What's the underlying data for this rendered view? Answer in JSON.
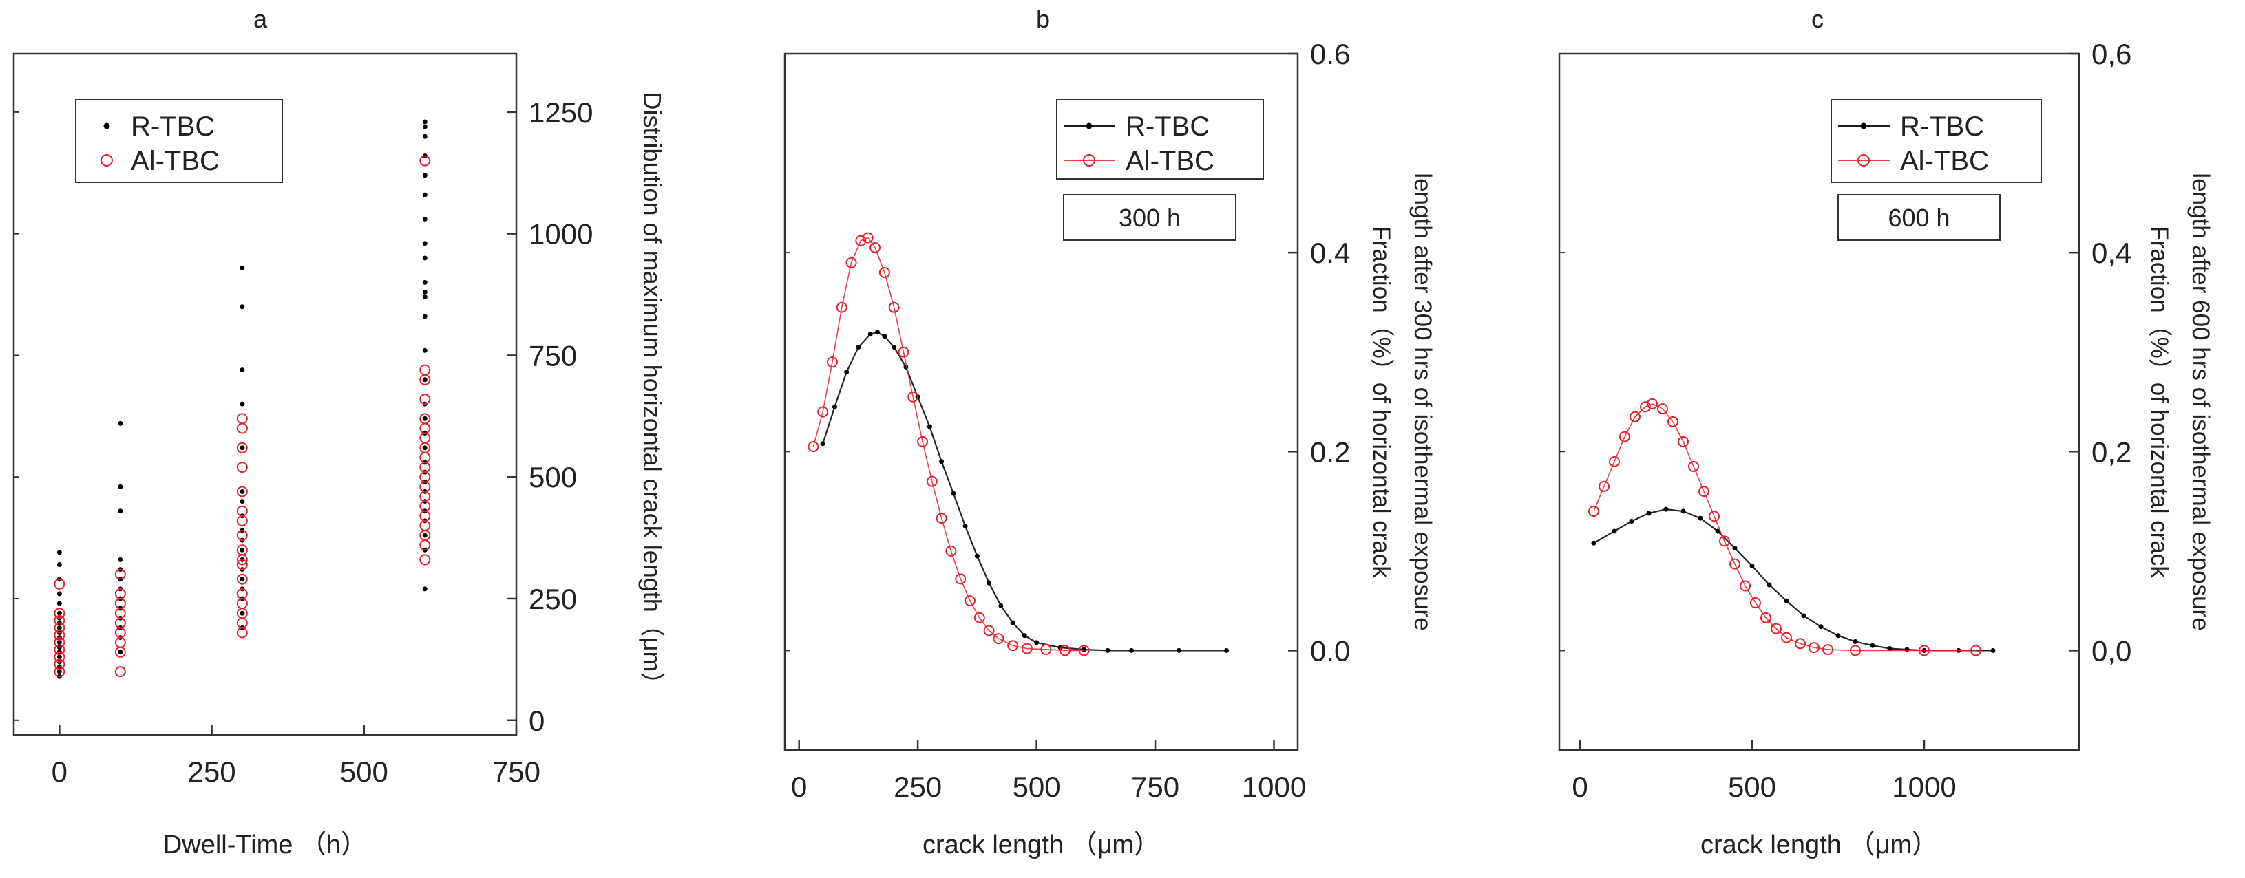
{
  "figure": {
    "panels": [
      "a",
      "b",
      "c"
    ]
  },
  "chart_data": [
    {
      "panel": "a",
      "type": "scatter",
      "title": "a",
      "xlabel": "Dwell-Time （h）",
      "ylabel": "Distribution of maximum horizontal crack length（μm）",
      "xlim": [
        -75,
        750
      ],
      "ylim": [
        -30,
        1370
      ],
      "xticks": [
        0,
        250,
        500,
        750
      ],
      "xtick_labels": [
        "0",
        "250",
        "500",
        "750"
      ],
      "yticks": [
        0,
        250,
        500,
        750,
        1000,
        1250
      ],
      "ytick_labels": [
        "0",
        "250",
        "500",
        "750",
        "1000",
        "1250"
      ],
      "y_axis_side": "right",
      "legend_position": "top-left",
      "series": [
        {
          "name": "R-TBC",
          "color": "#000000",
          "marker": "dot",
          "points": [
            [
              0,
              90
            ],
            [
              0,
              100
            ],
            [
              0,
              110
            ],
            [
              0,
              120
            ],
            [
              0,
              130
            ],
            [
              0,
              140
            ],
            [
              0,
              150
            ],
            [
              0,
              160
            ],
            [
              0,
              170
            ],
            [
              0,
              180
            ],
            [
              0,
              190
            ],
            [
              0,
              200
            ],
            [
              0,
              210
            ],
            [
              0,
              220
            ],
            [
              0,
              240
            ],
            [
              0,
              260
            ],
            [
              0,
              290
            ],
            [
              0,
              320
            ],
            [
              0,
              345
            ],
            [
              100,
              140
            ],
            [
              100,
              170
            ],
            [
              100,
              190
            ],
            [
              100,
              210
            ],
            [
              100,
              230
            ],
            [
              100,
              250
            ],
            [
              100,
              270
            ],
            [
              100,
              290
            ],
            [
              100,
              310
            ],
            [
              100,
              330
            ],
            [
              100,
              430
            ],
            [
              100,
              480
            ],
            [
              100,
              610
            ],
            [
              300,
              190
            ],
            [
              300,
              220
            ],
            [
              300,
              250
            ],
            [
              300,
              270
            ],
            [
              300,
              290
            ],
            [
              300,
              310
            ],
            [
              300,
              330
            ],
            [
              300,
              350
            ],
            [
              300,
              370
            ],
            [
              300,
              390
            ],
            [
              300,
              420
            ],
            [
              300,
              450
            ],
            [
              300,
              470
            ],
            [
              300,
              560
            ],
            [
              300,
              650
            ],
            [
              300,
              720
            ],
            [
              300,
              850
            ],
            [
              300,
              930
            ],
            [
              600,
              270
            ],
            [
              600,
              350
            ],
            [
              600,
              380
            ],
            [
              600,
              410
            ],
            [
              600,
              430
            ],
            [
              600,
              450
            ],
            [
              600,
              470
            ],
            [
              600,
              490
            ],
            [
              600,
              510
            ],
            [
              600,
              530
            ],
            [
              600,
              560
            ],
            [
              600,
              590
            ],
            [
              600,
              620
            ],
            [
              600,
              650
            ],
            [
              600,
              700
            ],
            [
              600,
              760
            ],
            [
              600,
              830
            ],
            [
              600,
              870
            ],
            [
              600,
              880
            ],
            [
              600,
              900
            ],
            [
              600,
              950
            ],
            [
              600,
              980
            ],
            [
              600,
              1030
            ],
            [
              600,
              1080
            ],
            [
              600,
              1120
            ],
            [
              600,
              1160
            ],
            [
              600,
              1200
            ],
            [
              600,
              1220
            ],
            [
              600,
              1230
            ]
          ]
        },
        {
          "name": "Al-TBC",
          "color": "#e8202a",
          "marker": "open-circle",
          "points": [
            [
              0,
              100
            ],
            [
              0,
              115
            ],
            [
              0,
              130
            ],
            [
              0,
              145
            ],
            [
              0,
              160
            ],
            [
              0,
              175
            ],
            [
              0,
              190
            ],
            [
              0,
              205
            ],
            [
              0,
              220
            ],
            [
              0,
              280
            ],
            [
              100,
              100
            ],
            [
              100,
              140
            ],
            [
              100,
              160
            ],
            [
              100,
              180
            ],
            [
              100,
              200
            ],
            [
              100,
              220
            ],
            [
              100,
              240
            ],
            [
              100,
              260
            ],
            [
              100,
              300
            ],
            [
              300,
              180
            ],
            [
              300,
              200
            ],
            [
              300,
              220
            ],
            [
              300,
              240
            ],
            [
              300,
              260
            ],
            [
              300,
              290
            ],
            [
              300,
              320
            ],
            [
              300,
              330
            ],
            [
              300,
              350
            ],
            [
              300,
              380
            ],
            [
              300,
              410
            ],
            [
              300,
              430
            ],
            [
              300,
              470
            ],
            [
              300,
              520
            ],
            [
              300,
              560
            ],
            [
              300,
              600
            ],
            [
              300,
              620
            ],
            [
              600,
              330
            ],
            [
              600,
              360
            ],
            [
              600,
              380
            ],
            [
              600,
              400
            ],
            [
              600,
              420
            ],
            [
              600,
              440
            ],
            [
              600,
              460
            ],
            [
              600,
              480
            ],
            [
              600,
              500
            ],
            [
              600,
              520
            ],
            [
              600,
              540
            ],
            [
              600,
              560
            ],
            [
              600,
              580
            ],
            [
              600,
              600
            ],
            [
              600,
              620
            ],
            [
              600,
              660
            ],
            [
              600,
              700
            ],
            [
              600,
              720
            ],
            [
              600,
              1150
            ]
          ]
        }
      ]
    },
    {
      "panel": "b",
      "type": "line",
      "title": "b",
      "xlabel": "crack length （μm）",
      "ylabel": "Fraction（%）of horizontal crack length after 300 hrs of isothermal exposure",
      "ylabel_lines": [
        "Fraction（%）of horizontal crack",
        "length after 300 hrs of isothermal exposure"
      ],
      "xlim": [
        -30,
        1050
      ],
      "ylim": [
        -0.1,
        0.6
      ],
      "xticks": [
        0,
        250,
        500,
        750,
        1000
      ],
      "xtick_labels": [
        "0",
        "250",
        "500",
        "750",
        "1000"
      ],
      "yticks": [
        0.0,
        0.2,
        0.4,
        0.6
      ],
      "ytick_labels": [
        "0.0",
        "0.2",
        "0.4",
        "0.6"
      ],
      "y_axis_side": "right",
      "legend_position": "top-right",
      "annotation": "300 h",
      "series": [
        {
          "name": "R-TBC",
          "color": "#000000",
          "marker": "dot",
          "points": [
            [
              50,
              0.208
            ],
            [
              75,
              0.245
            ],
            [
              100,
              0.28
            ],
            [
              125,
              0.305
            ],
            [
              150,
              0.318
            ],
            [
              165,
              0.32
            ],
            [
              180,
              0.316
            ],
            [
              200,
              0.305
            ],
            [
              225,
              0.285
            ],
            [
              250,
              0.255
            ],
            [
              275,
              0.225
            ],
            [
              300,
              0.19
            ],
            [
              325,
              0.158
            ],
            [
              350,
              0.125
            ],
            [
              375,
              0.095
            ],
            [
              400,
              0.068
            ],
            [
              425,
              0.045
            ],
            [
              450,
              0.028
            ],
            [
              475,
              0.015
            ],
            [
              500,
              0.008
            ],
            [
              550,
              0.003
            ],
            [
              600,
              0.001
            ],
            [
              650,
              0.0
            ],
            [
              700,
              0.0
            ],
            [
              800,
              0.0
            ],
            [
              900,
              0.0
            ]
          ]
        },
        {
          "name": "Al-TBC",
          "color": "#e8202a",
          "marker": "open-circle",
          "points": [
            [
              30,
              0.205
            ],
            [
              50,
              0.24
            ],
            [
              70,
              0.29
            ],
            [
              90,
              0.345
            ],
            [
              110,
              0.39
            ],
            [
              130,
              0.412
            ],
            [
              145,
              0.415
            ],
            [
              160,
              0.405
            ],
            [
              180,
              0.38
            ],
            [
              200,
              0.345
            ],
            [
              220,
              0.3
            ],
            [
              240,
              0.255
            ],
            [
              260,
              0.21
            ],
            [
              280,
              0.17
            ],
            [
              300,
              0.133
            ],
            [
              320,
              0.1
            ],
            [
              340,
              0.072
            ],
            [
              360,
              0.05
            ],
            [
              380,
              0.033
            ],
            [
              400,
              0.02
            ],
            [
              420,
              0.012
            ],
            [
              450,
              0.005
            ],
            [
              480,
              0.002
            ],
            [
              520,
              0.001
            ],
            [
              560,
              0.0
            ],
            [
              600,
              0.0
            ]
          ]
        }
      ]
    },
    {
      "panel": "c",
      "type": "line",
      "title": "c",
      "xlabel": "crack length （μm）",
      "ylabel": "Fraction（%）of horizontal crack length after 600 hrs of isothermal exposure",
      "ylabel_lines": [
        "Fraction（%）of horizontal crack",
        "length after 600 hrs of isothermal exposure"
      ],
      "xlim": [
        -60,
        1450
      ],
      "ylim": [
        -0.1,
        0.6
      ],
      "xticks": [
        0,
        500,
        1000
      ],
      "xtick_labels": [
        "0",
        "500",
        "1000"
      ],
      "yticks": [
        0.0,
        0.2,
        0.4,
        0.6
      ],
      "ytick_labels": [
        "0,0",
        "0,2",
        "0,4",
        "0,6"
      ],
      "y_axis_side": "right",
      "legend_position": "top-right",
      "annotation": "600 h",
      "series": [
        {
          "name": "R-TBC",
          "color": "#000000",
          "marker": "dot",
          "points": [
            [
              40,
              0.108
            ],
            [
              100,
              0.12
            ],
            [
              150,
              0.13
            ],
            [
              200,
              0.138
            ],
            [
              250,
              0.142
            ],
            [
              300,
              0.14
            ],
            [
              350,
              0.133
            ],
            [
              400,
              0.12
            ],
            [
              450,
              0.103
            ],
            [
              500,
              0.085
            ],
            [
              550,
              0.066
            ],
            [
              600,
              0.05
            ],
            [
              650,
              0.035
            ],
            [
              700,
              0.024
            ],
            [
              750,
              0.015
            ],
            [
              800,
              0.009
            ],
            [
              850,
              0.005
            ],
            [
              900,
              0.002
            ],
            [
              950,
              0.001
            ],
            [
              1000,
              0.0
            ],
            [
              1100,
              0.0
            ],
            [
              1200,
              0.0
            ]
          ]
        },
        {
          "name": "Al-TBC",
          "color": "#e8202a",
          "marker": "open-circle",
          "points": [
            [
              40,
              0.14
            ],
            [
              70,
              0.165
            ],
            [
              100,
              0.19
            ],
            [
              130,
              0.215
            ],
            [
              160,
              0.235
            ],
            [
              190,
              0.245
            ],
            [
              210,
              0.248
            ],
            [
              240,
              0.243
            ],
            [
              270,
              0.23
            ],
            [
              300,
              0.21
            ],
            [
              330,
              0.185
            ],
            [
              360,
              0.16
            ],
            [
              390,
              0.135
            ],
            [
              420,
              0.11
            ],
            [
              450,
              0.087
            ],
            [
              480,
              0.065
            ],
            [
              510,
              0.048
            ],
            [
              540,
              0.033
            ],
            [
              570,
              0.022
            ],
            [
              600,
              0.013
            ],
            [
              640,
              0.007
            ],
            [
              680,
              0.003
            ],
            [
              720,
              0.001
            ],
            [
              800,
              0.0
            ],
            [
              1000,
              0.0
            ],
            [
              1150,
              0.0
            ]
          ]
        }
      ]
    }
  ]
}
